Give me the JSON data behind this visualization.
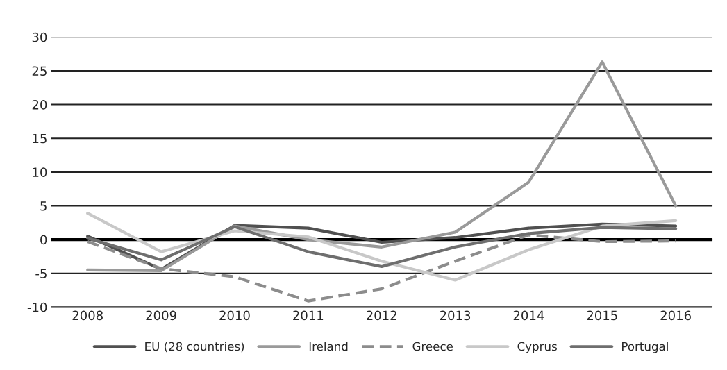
{
  "chart_data": {
    "type": "line",
    "categories": [
      "2008",
      "2009",
      "2010",
      "2011",
      "2012",
      "2013",
      "2014",
      "2015",
      "2016"
    ],
    "series": [
      {
        "name": "EU (28 countries)",
        "color": "#505050",
        "values": [
          0.5,
          -4.4,
          2.1,
          1.7,
          -0.4,
          0.3,
          1.7,
          2.3,
          2.0
        ]
      },
      {
        "name": "Ireland",
        "color": "#9a9a9a",
        "values": [
          -4.5,
          -4.6,
          2.0,
          0.0,
          -1.1,
          1.1,
          8.5,
          26.3,
          5.0
        ]
      },
      {
        "name": "Greece",
        "color": "#8c8c8c",
        "line_style": "dashed",
        "values": [
          -0.3,
          -4.3,
          -5.5,
          -9.1,
          -7.3,
          -3.2,
          0.7,
          -0.3,
          -0.2
        ]
      },
      {
        "name": "Cyprus",
        "color": "#c8c8c8",
        "values": [
          3.9,
          -1.8,
          1.3,
          0.4,
          -3.2,
          -6.0,
          -1.5,
          2.0,
          2.8
        ]
      },
      {
        "name": "Portugal",
        "color": "#6e6e6e",
        "values": [
          0.2,
          -3.0,
          1.9,
          -1.8,
          -4.0,
          -1.1,
          0.9,
          1.8,
          1.6
        ]
      }
    ],
    "ylim": [
      -10,
      30
    ],
    "yticks": [
      -10,
      -5,
      0,
      5,
      10,
      15,
      20,
      25,
      30
    ],
    "ref_lines": [
      {
        "axis": "y",
        "value": 0,
        "color": "#000000"
      }
    ],
    "grid": "y",
    "legend": "bottom",
    "line_style": "solid",
    "marker": "none"
  }
}
